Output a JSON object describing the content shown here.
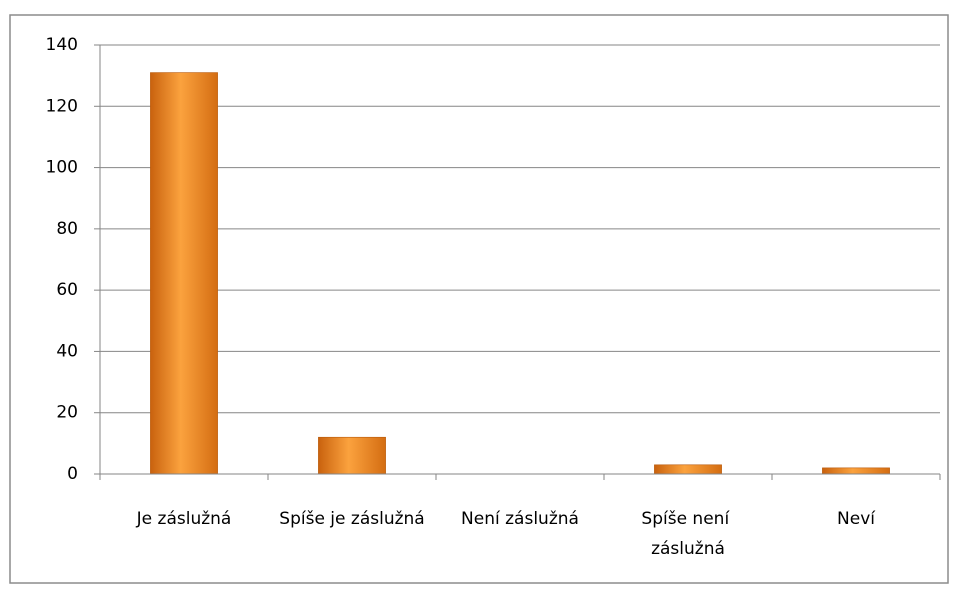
{
  "chart_data": {
    "type": "bar",
    "categories": [
      "Je záslužná",
      "Spíše je záslužná",
      "Není záslužná",
      "Spíše není záslužná",
      "Neví"
    ],
    "values": [
      131,
      12,
      0,
      3,
      2
    ],
    "color": "#f08c1e",
    "ylim": [
      0,
      140
    ],
    "yticks": [
      0,
      20,
      40,
      60,
      80,
      100,
      120,
      140
    ],
    "grid": true
  }
}
